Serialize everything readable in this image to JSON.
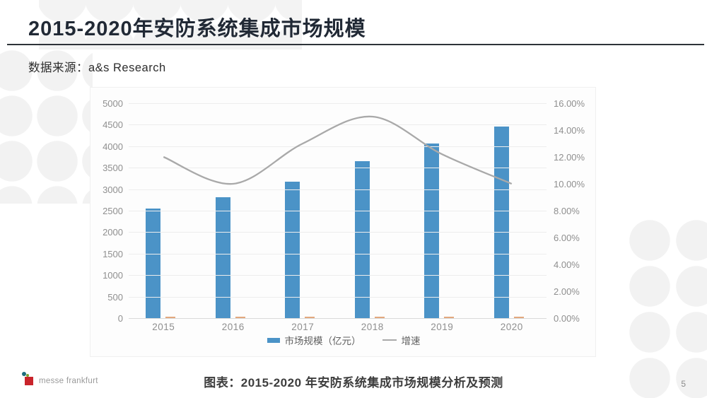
{
  "slide": {
    "title": "2015-2020年安防系统集成市场规模",
    "source": "数据来源：a&s Research",
    "caption": "图表：2015-2020 年安防系统集成市场规模分析及预测",
    "page_number": "5",
    "logo_text": "messe frankfurt"
  },
  "colors": {
    "bar": "#4b93c7",
    "line": "#a9a9a9",
    "aux_dash": "#e3a87e",
    "title_text": "#212935",
    "axis_text": "#8f8f8f"
  },
  "chart_data": {
    "type": "bar",
    "subtype": "combo bar+line, secondary percent axis",
    "categories": [
      "2015",
      "2016",
      "2017",
      "2018",
      "2019",
      "2020"
    ],
    "series": [
      {
        "name": "市场规模（亿元）",
        "type": "bar",
        "axis": "left",
        "values": [
          2550,
          2820,
          3170,
          3650,
          4070,
          4460
        ]
      },
      {
        "name": "增速",
        "type": "line",
        "axis": "right",
        "values": [
          12.0,
          10.0,
          13.0,
          15.0,
          12.2,
          10.0
        ]
      }
    ],
    "left_axis": {
      "min": 0,
      "max": 5000,
      "step": 500,
      "ticks": [
        "5000",
        "4500",
        "4000",
        "3500",
        "3000",
        "2500",
        "2000",
        "1500",
        "1000",
        "500",
        "0"
      ]
    },
    "right_axis": {
      "min": 0,
      "max": 16,
      "step": 2,
      "ticks": [
        "16.00%",
        "14.00%",
        "12.00%",
        "10.00%",
        "8.00%",
        "6.00%",
        "4.00%",
        "2.00%",
        "0.00%"
      ]
    },
    "legend": [
      {
        "label": "市场规模（亿元）",
        "swatch": "bar"
      },
      {
        "label": "增速",
        "swatch": "line"
      }
    ],
    "grid": true,
    "legend_position": "bottom"
  }
}
